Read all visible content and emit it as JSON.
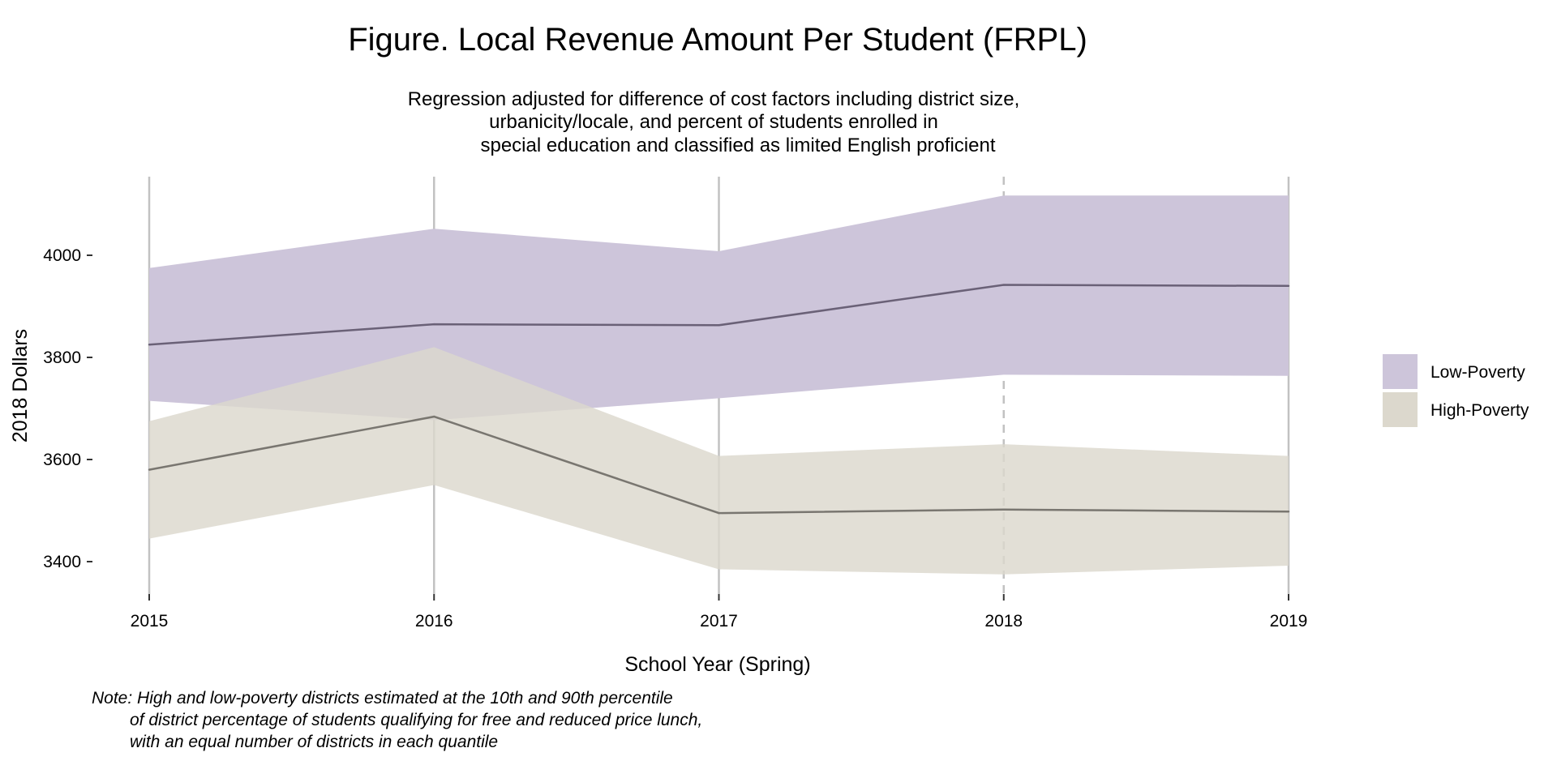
{
  "chart_data": {
    "type": "area",
    "title": "Figure. Local Revenue Amount Per Student (FRPL)",
    "subtitle": [
      "Regression adjusted for difference of cost factors including district size,",
      "urbanicity/locale, and percent of students enrolled in",
      "special education and classified as limited English proficient"
    ],
    "xlabel": "School Year (Spring)",
    "ylabel": "2018 Dollars",
    "x": [
      2015,
      2016,
      2017,
      2018,
      2019
    ],
    "x_ticks": [
      "2015",
      "2016",
      "2017",
      "2018",
      "2019"
    ],
    "y_ticks": [
      3400,
      3600,
      3800,
      4000
    ],
    "ylim": [
      3320,
      4150
    ],
    "grid": "vertical lines at each year; 2018 dashed",
    "legend_position": "right",
    "series": [
      {
        "name": "Low-Poverty",
        "values": [
          3825,
          3865,
          3863,
          3942,
          3940
        ],
        "lower": [
          3715,
          3677,
          3720,
          3766,
          3764
        ],
        "upper": [
          3975,
          4052,
          4008,
          4117,
          4117
        ],
        "band_color": "#cdc5da",
        "line_color": "#6a6177"
      },
      {
        "name": "High-Poverty",
        "values": [
          3580,
          3684,
          3495,
          3502,
          3498
        ],
        "lower": [
          3445,
          3550,
          3385,
          3375,
          3392
        ],
        "upper": [
          3675,
          3820,
          3607,
          3630,
          3607
        ],
        "band_color": "#dcd8cd",
        "line_color": "#797670"
      }
    ],
    "note": [
      "Note: High and low-poverty districts estimated at the 10th and 90th percentile",
      "of district percentage of students qualifying for free and reduced price lunch,",
      "with an equal number of districts in each quantile"
    ]
  }
}
